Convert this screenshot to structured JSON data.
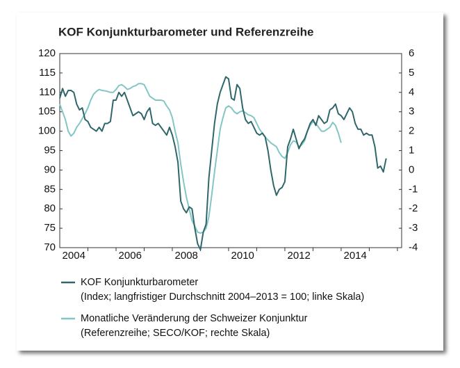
{
  "chart_data": {
    "type": "line",
    "title": "KOF Konjunkturbarometer und Referenzreihe",
    "x": [
      2004.0,
      2004.1,
      2004.2,
      2004.3,
      2004.4,
      2004.5,
      2004.6,
      2004.7,
      2004.8,
      2004.9,
      2005.0,
      2005.1,
      2005.2,
      2005.3,
      2005.4,
      2005.5,
      2005.6,
      2005.7,
      2005.8,
      2005.9,
      2006.0,
      2006.1,
      2006.2,
      2006.3,
      2006.4,
      2006.5,
      2006.6,
      2006.7,
      2006.8,
      2006.9,
      2007.0,
      2007.1,
      2007.2,
      2007.3,
      2007.4,
      2007.5,
      2007.6,
      2007.7,
      2007.8,
      2007.9,
      2008.0,
      2008.1,
      2008.2,
      2008.3,
      2008.4,
      2008.5,
      2008.6,
      2008.7,
      2008.8,
      2008.9,
      2009.0,
      2009.1,
      2009.2,
      2009.3,
      2009.4,
      2009.5,
      2009.6,
      2009.7,
      2009.8,
      2009.9,
      2010.0,
      2010.1,
      2010.2,
      2010.3,
      2010.4,
      2010.5,
      2010.6,
      2010.7,
      2010.8,
      2010.9,
      2011.0,
      2011.1,
      2011.2,
      2011.3,
      2011.4,
      2011.5,
      2011.6,
      2011.7,
      2011.8,
      2011.9,
      2012.0,
      2012.1,
      2012.2,
      2012.3,
      2012.4,
      2012.5,
      2012.6,
      2012.7,
      2012.8,
      2012.9,
      2013.0,
      2013.1,
      2013.2,
      2013.3,
      2013.4,
      2013.5,
      2013.6,
      2013.7,
      2013.8,
      2013.9,
      2014.0,
      2014.1,
      2014.2,
      2014.3,
      2014.4,
      2014.5,
      2014.6,
      2014.7,
      2014.8,
      2014.9,
      2015.0,
      2015.1,
      2015.2,
      2015.3,
      2015.4,
      2015.5,
      2015.6
    ],
    "series": [
      {
        "name": "KOF Konjunkturbarometer",
        "note": "(Index; langfristiger Durchschnitt 2004–2013 = 100; linke Skala)",
        "color": "#2f6669",
        "axis": "y",
        "values": [
          108.5,
          111,
          109,
          110.5,
          110.5,
          110,
          107,
          105.5,
          106,
          103,
          102.5,
          101,
          100.5,
          100,
          101,
          100,
          102,
          102,
          102.5,
          108,
          108,
          110,
          109,
          110,
          108,
          106,
          104,
          104.5,
          105,
          104.5,
          103,
          105,
          106,
          102,
          101.5,
          102,
          101,
          100,
          99,
          101,
          99,
          96,
          92,
          82,
          80,
          79,
          80.5,
          80,
          75,
          71,
          69.5,
          74,
          76,
          88,
          95,
          102,
          107,
          110,
          112,
          114,
          113.5,
          108.5,
          108,
          112,
          111,
          106,
          103,
          102,
          102.5,
          101,
          99.5,
          99,
          99.5,
          98.5,
          95,
          90,
          86,
          83.5,
          85,
          85.5,
          87,
          96,
          98,
          100.5,
          98,
          95.5,
          97,
          98,
          100,
          102,
          103,
          101.5,
          104,
          103,
          102,
          102.5,
          105.5,
          106,
          107,
          104.5,
          104,
          103,
          104.5,
          106,
          105,
          102,
          100.5,
          100.5,
          99,
          99.5,
          99,
          99,
          96,
          90.5,
          91,
          89.5,
          93
        ]
      },
      {
        "name": "Monatliche Veränderung der Schweizer Konjunktur",
        "note": "(Referenzreihe; SECO/KOF; rechte Skala)",
        "color": "#82c6c5",
        "axis": "y2",
        "values": [
          3.4,
          3.0,
          2.6,
          2.0,
          1.75,
          1.9,
          2.2,
          2.4,
          2.65,
          2.9,
          3.2,
          3.6,
          3.9,
          4.05,
          4.15,
          4.1,
          4.08,
          4.05,
          4.0,
          4.0,
          4.15,
          4.35,
          4.4,
          4.3,
          4.15,
          4.2,
          4.3,
          4.35,
          4.45,
          4.45,
          4.4,
          4.1,
          3.8,
          3.7,
          3.6,
          3.6,
          3.6,
          3.55,
          3.3,
          3.1,
          2.7,
          2.0,
          1.4,
          0.3,
          -0.6,
          -1.4,
          -2.0,
          -2.6,
          -2.9,
          -3.2,
          -3.25,
          -3.2,
          -3.0,
          -2.4,
          -1.3,
          -0.1,
          1.0,
          2.1,
          2.7,
          3.2,
          3.3,
          3.2,
          3.0,
          2.9,
          3.0,
          3.05,
          2.95,
          2.85,
          2.8,
          2.7,
          2.4,
          2.1,
          1.9,
          1.7,
          1.55,
          1.4,
          1.3,
          1.2,
          0.9,
          0.7,
          0.6,
          0.9,
          1.3,
          1.5,
          1.45,
          1.2,
          1.3,
          1.5,
          2.0,
          2.3,
          2.5,
          2.4,
          2.2,
          2.0,
          2.0,
          2.1,
          2.2,
          2.45,
          2.3,
          1.9,
          1.4,
          null,
          null,
          null,
          null,
          null,
          null,
          null,
          null,
          null,
          null,
          null,
          null,
          null,
          null,
          null,
          null
        ]
      }
    ],
    "xlim": [
      2004,
      2016.15
    ],
    "xticks": [
      {
        "value": 2004.5,
        "label": "2004"
      },
      {
        "value": 2006.5,
        "label": "2006"
      },
      {
        "value": 2008.5,
        "label": "2008"
      },
      {
        "value": 2010.5,
        "label": "2010"
      },
      {
        "value": 2012.5,
        "label": "2012"
      },
      {
        "value": 2014.5,
        "label": "2014"
      }
    ],
    "xminor_ticks": [
      2005,
      2006,
      2007,
      2008,
      2009,
      2010,
      2011,
      2012,
      2013,
      2014,
      2015,
      2016
    ],
    "ylim": [
      70,
      120
    ],
    "yticks": [
      70,
      75,
      80,
      85,
      90,
      95,
      100,
      105,
      110,
      115,
      120
    ],
    "y2lim": [
      -4,
      6
    ],
    "y2ticks": [
      -4,
      -3,
      -2,
      -1,
      0,
      1,
      2,
      3,
      4,
      5,
      6
    ],
    "grid": false
  }
}
